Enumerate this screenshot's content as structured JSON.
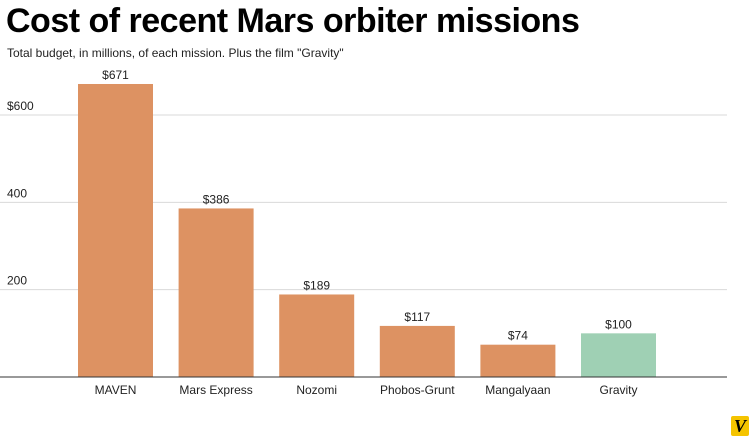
{
  "title": "Cost of recent Mars orbiter missions",
  "subtitle": "Total budget, in millions, of each mission. Plus the film \"Gravity\"",
  "logo_text": "V",
  "colors": {
    "mission_bar": "#dd9262",
    "film_bar": "#9fd0b4",
    "grid": "#d9d9d9",
    "axis": "#333333",
    "logo": "#f5c400"
  },
  "chart_data": {
    "type": "bar",
    "title": "Cost of recent Mars orbiter missions",
    "subtitle": "Total budget, in millions, of each mission. Plus the film \"Gravity\"",
    "xlabel": "",
    "ylabel": "",
    "ylim": [
      0,
      600
    ],
    "yticks": [
      200,
      400,
      600
    ],
    "ytick_labels": [
      "200",
      "400",
      "$600"
    ],
    "grid": true,
    "legend": "none",
    "categories": [
      "MAVEN",
      "Mars Express",
      "Nozomi",
      "Phobos-Grunt",
      "Mangalyaan",
      "Gravity"
    ],
    "values": [
      671,
      386,
      189,
      117,
      74,
      100
    ],
    "value_labels": [
      "$671",
      "$386",
      "$189",
      "$117",
      "$74",
      "$100"
    ],
    "bar_colors": [
      "#dd9262",
      "#dd9262",
      "#dd9262",
      "#dd9262",
      "#dd9262",
      "#9fd0b4"
    ]
  }
}
